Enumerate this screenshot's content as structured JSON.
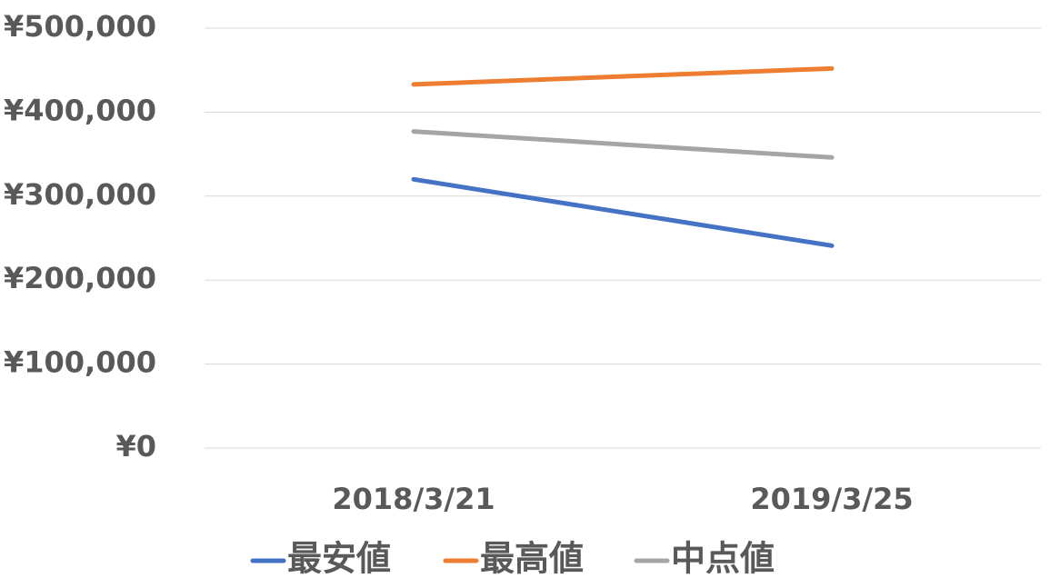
{
  "chart_data": {
    "type": "line",
    "categories": [
      "2018/3/21",
      "2019/3/25"
    ],
    "series": [
      {
        "name": "最安値",
        "color": "#4472c4",
        "values": [
          320000,
          241000
        ]
      },
      {
        "name": "最高値",
        "color": "#ed7d31",
        "values": [
          433000,
          452000
        ]
      },
      {
        "name": "中点値",
        "color": "#a5a5a5",
        "values": [
          377000,
          346000
        ]
      }
    ],
    "ylim": [
      0,
      500000
    ],
    "yticks": [
      {
        "value": 0,
        "label": "¥0"
      },
      {
        "value": 100000,
        "label": "¥100,000"
      },
      {
        "value": 200000,
        "label": "¥200,000"
      },
      {
        "value": 300000,
        "label": "¥300,000"
      },
      {
        "value": 400000,
        "label": "¥400,000"
      },
      {
        "value": 500000,
        "label": "¥500,000"
      }
    ],
    "grid": true,
    "legend": "bottom"
  }
}
